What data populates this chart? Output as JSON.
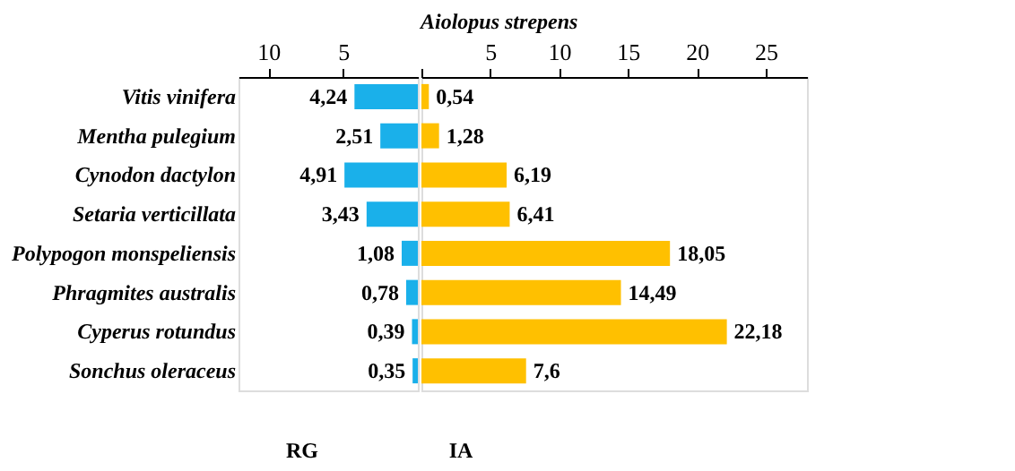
{
  "chart_data": [
    {
      "type": "bar",
      "orientation": "horizontal",
      "xlabel": "RG",
      "categories": [
        "Vitis vinifera",
        "Mentha pulegium",
        "Cynodon dactylon",
        "Setaria verticillata",
        "Polypogon monspeliensis",
        "Phragmites australis",
        "Cyperus rotundus",
        "Sonchus oleraceus"
      ],
      "values": [
        4.24,
        2.51,
        4.91,
        3.43,
        1.08,
        0.78,
        0.39,
        0.35
      ],
      "value_labels": [
        "4,24",
        "2,51",
        "4,91",
        "3,43",
        "1,08",
        "0,78",
        "0,39",
        "0,35"
      ],
      "color": "#1ab0ea",
      "xlim": [
        12,
        0
      ],
      "xticks": [
        10,
        5
      ],
      "grid": false
    },
    {
      "type": "bar",
      "orientation": "horizontal",
      "title": "Aiolopus strepens",
      "xlabel": "IA",
      "categories": [
        "Vitis vinifera",
        "Mentha pulegium",
        "Cynodon dactylon",
        "Setaria verticillata",
        "Polypogon monspeliensis",
        "Phragmites australis",
        "Cyperus rotundus",
        "Sonchus oleraceus"
      ],
      "values": [
        0.54,
        1.28,
        6.19,
        6.41,
        18.05,
        14.49,
        22.18,
        7.6
      ],
      "value_labels": [
        "0,54",
        "1,28",
        "6,19",
        "6,41",
        "18,05",
        "14,49",
        "22,18",
        "7,6"
      ],
      "color": "#ffc000",
      "xlim": [
        0,
        28
      ],
      "xticks": [
        {
          "value": 0,
          "label": null
        },
        5,
        10,
        15,
        20,
        25
      ],
      "grid": false,
      "tick_labels": "x"
    }
  ]
}
